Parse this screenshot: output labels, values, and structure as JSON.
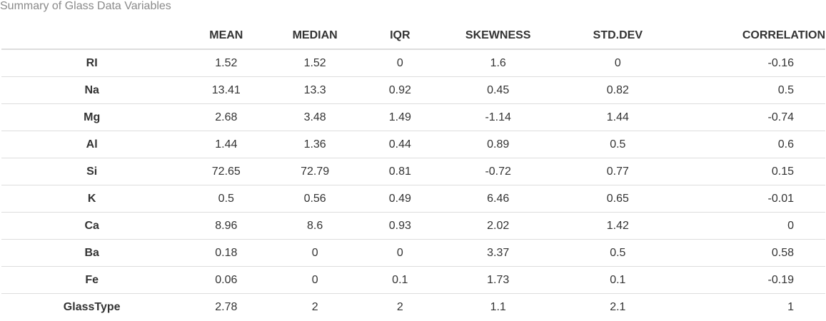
{
  "caption": "Summary of Glass Data Variables",
  "table": {
    "columns": [
      "",
      "MEAN",
      "MEDIAN",
      "IQR",
      "SKEWNESS",
      "STD.DEV",
      "CORRELATION"
    ],
    "rows": [
      [
        "RI",
        "1.52",
        "1.52",
        "0",
        "1.6",
        "0",
        "-0.16"
      ],
      [
        "Na",
        "13.41",
        "13.3",
        "0.92",
        "0.45",
        "0.82",
        "0.5"
      ],
      [
        "Mg",
        "2.68",
        "3.48",
        "1.49",
        "-1.14",
        "1.44",
        "-0.74"
      ],
      [
        "Al",
        "1.44",
        "1.36",
        "0.44",
        "0.89",
        "0.5",
        "0.6"
      ],
      [
        "Si",
        "72.65",
        "72.79",
        "0.81",
        "-0.72",
        "0.77",
        "0.15"
      ],
      [
        "K",
        "0.5",
        "0.56",
        "0.49",
        "6.46",
        "0.65",
        "-0.01"
      ],
      [
        "Ca",
        "8.96",
        "8.6",
        "0.93",
        "2.02",
        "1.42",
        "0"
      ],
      [
        "Ba",
        "0.18",
        "0",
        "0",
        "3.37",
        "0.5",
        "0.58"
      ],
      [
        "Fe",
        "0.06",
        "0",
        "0.1",
        "1.73",
        "0.1",
        "-0.19"
      ],
      [
        "GlassType",
        "2.78",
        "2",
        "2",
        "1.1",
        "2.1",
        "1"
      ]
    ]
  }
}
